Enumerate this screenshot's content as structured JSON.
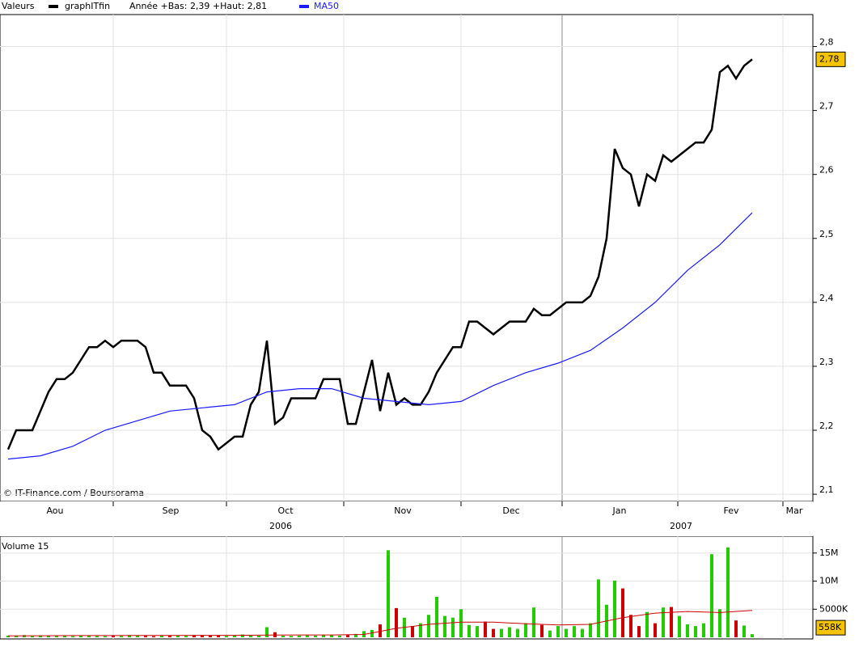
{
  "chart_data": [
    {
      "type": "line",
      "header_label": "Valeurs",
      "range_note": "Année +Bas: 2,39 +Haut: 2,81",
      "credit": "© IT-Finance.com / Boursorama",
      "x_labels": [
        "Aou",
        "Sep",
        "Oct",
        "Nov",
        "Dec",
        "Jan",
        "Fev",
        "Mar"
      ],
      "year_labels": [
        "2006",
        "2007"
      ],
      "ylim": [
        2.09,
        2.85
      ],
      "yticks": [
        {
          "value": 2.1,
          "label": "2,1"
        },
        {
          "value": 2.2,
          "label": "2,2"
        },
        {
          "value": 2.3,
          "label": "2,3"
        },
        {
          "value": 2.4,
          "label": "2,4"
        },
        {
          "value": 2.5,
          "label": "2,5"
        },
        {
          "value": 2.6,
          "label": "2,6"
        },
        {
          "value": 2.7,
          "label": "2,7"
        },
        {
          "value": 2.8,
          "label": "2,8"
        }
      ],
      "grid": true,
      "last_value": {
        "value": 2.78,
        "label": "2,78"
      },
      "series": [
        {
          "name": "graphITfin",
          "color": "#000000",
          "values": [
            2.17,
            2.2,
            2.2,
            2.2,
            2.23,
            2.26,
            2.28,
            2.28,
            2.29,
            2.31,
            2.33,
            2.33,
            2.34,
            2.33,
            2.34,
            2.34,
            2.34,
            2.33,
            2.29,
            2.29,
            2.27,
            2.27,
            2.27,
            2.25,
            2.2,
            2.19,
            2.17,
            2.18,
            2.19,
            2.19,
            2.24,
            2.26,
            2.34,
            2.21,
            2.22,
            2.25,
            2.25,
            2.25,
            2.25,
            2.28,
            2.28,
            2.28,
            2.21,
            2.21,
            2.26,
            2.31,
            2.23,
            2.29,
            2.24,
            2.25,
            2.24,
            2.24,
            2.26,
            2.29,
            2.31,
            2.33,
            2.33,
            2.37,
            2.37,
            2.36,
            2.35,
            2.36,
            2.37,
            2.37,
            2.37,
            2.39,
            2.38,
            2.38,
            2.39,
            2.4,
            2.4,
            2.4,
            2.41,
            2.44,
            2.5,
            2.64,
            2.61,
            2.6,
            2.55,
            2.6,
            2.59,
            2.63,
            2.62,
            2.63,
            2.64,
            2.65,
            2.65,
            2.67,
            2.76,
            2.77,
            2.75,
            2.77,
            2.78
          ]
        },
        {
          "name": "MA50",
          "color": "#1a1aff",
          "values": [
            2.155,
            2.16,
            2.175,
            2.2,
            2.215,
            2.23,
            2.235,
            2.24,
            2.26,
            2.265,
            2.265,
            2.25,
            2.245,
            2.24,
            2.245,
            2.27,
            2.29,
            2.305,
            2.325,
            2.36,
            2.4,
            2.45,
            2.49,
            2.54
          ]
        }
      ]
    },
    {
      "type": "bar",
      "title": "Volume 15",
      "ylim": [
        0,
        18000
      ],
      "yticks": [
        {
          "value": 15000,
          "label": "15M"
        },
        {
          "value": 10000,
          "label": "10M"
        },
        {
          "value": 5000,
          "label": "5000K"
        }
      ],
      "up_color": "#22cc00",
      "down_color": "#cc0000",
      "ma_color": "#cc0000",
      "last_value": {
        "value": 558,
        "label": "558K"
      },
      "values": [
        300,
        250,
        400,
        200,
        350,
        300,
        250,
        300,
        200,
        350,
        300,
        250,
        200,
        300,
        250,
        400,
        300,
        250,
        200,
        300,
        350,
        300,
        250,
        300,
        400,
        350,
        300,
        250,
        300,
        500,
        400,
        300,
        1800,
        900,
        300,
        250,
        300,
        350,
        300,
        400,
        350,
        300,
        400,
        600,
        1100,
        1300,
        2300,
        15500,
        5200,
        3500,
        2000,
        2500,
        4000,
        7200,
        3800,
        3500,
        5000,
        2200,
        2000,
        2800,
        1500,
        1500,
        1800,
        1500,
        2500,
        5300,
        2200,
        1200,
        2000,
        1500,
        2000,
        1500,
        2500,
        10300,
        5800,
        10100,
        8700,
        4000,
        2000,
        4500,
        2500,
        5300,
        5400,
        3800,
        2300,
        2000,
        2500,
        14800,
        5000,
        16000,
        3000,
        2100,
        558
      ],
      "ma_values": [
        250,
        280,
        300,
        300,
        320,
        330,
        350,
        350,
        400,
        420,
        420,
        500,
        1600,
        2300,
        2700,
        2700,
        2400,
        2200,
        2300,
        3500,
        4300,
        4600,
        4400,
        4800
      ]
    }
  ]
}
